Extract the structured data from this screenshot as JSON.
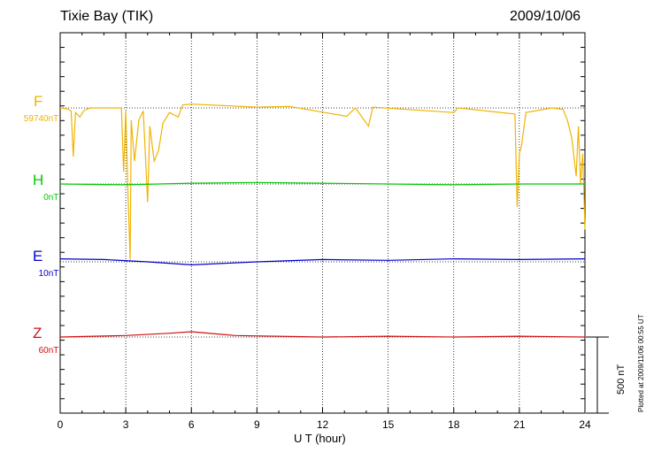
{
  "header": {
    "station": "Tixie Bay (TIK)",
    "date": "2009/10/06"
  },
  "footer": {
    "plotted_at": "Plotted at 2009/11/06 00:55 UT",
    "scale_label": "500 nT"
  },
  "colors": {
    "F": "#f0b400",
    "H": "#00c800",
    "E": "#0000c8",
    "Z": "#d01010",
    "grid": "#000000"
  },
  "chart_data": {
    "type": "line",
    "title": "Tixie Bay (TIK)",
    "date": "2009/10/06",
    "xlabel": "U T (hour)",
    "xlim": [
      0,
      24
    ],
    "xticks": [
      "0",
      "3",
      "6",
      "9",
      "12",
      "15",
      "18",
      "21",
      "24"
    ],
    "grid": "dotted vertical lines every 3 hours",
    "scale_bar": "500 nT",
    "series": [
      {
        "name": "F",
        "baseline_label": "59740nT",
        "baseline_nT": 59740,
        "points": [
          [
            0,
            0
          ],
          [
            0.3,
            -5
          ],
          [
            0.5,
            -20
          ],
          [
            0.6,
            -320
          ],
          [
            0.7,
            -30
          ],
          [
            0.9,
            -60
          ],
          [
            1.1,
            -15
          ],
          [
            1.4,
            0
          ],
          [
            2.8,
            0
          ],
          [
            2.9,
            -420
          ],
          [
            3.0,
            -20
          ],
          [
            3.1,
            -560
          ],
          [
            3.2,
            -1000
          ],
          [
            3.25,
            -80
          ],
          [
            3.4,
            -350
          ],
          [
            3.6,
            -80
          ],
          [
            3.8,
            -20
          ],
          [
            4.0,
            -620
          ],
          [
            4.1,
            -120
          ],
          [
            4.3,
            -350
          ],
          [
            4.5,
            -280
          ],
          [
            4.7,
            -100
          ],
          [
            5.0,
            -30
          ],
          [
            5.4,
            -60
          ],
          [
            5.6,
            20
          ],
          [
            6.0,
            25
          ],
          [
            9.0,
            5
          ],
          [
            10.5,
            10
          ],
          [
            13.1,
            -55
          ],
          [
            13.5,
            0
          ],
          [
            14.1,
            -120
          ],
          [
            14.3,
            5
          ],
          [
            18.0,
            -30
          ],
          [
            18.2,
            0
          ],
          [
            20.8,
            -40
          ],
          [
            20.9,
            -650
          ],
          [
            21.0,
            -300
          ],
          [
            21.1,
            -250
          ],
          [
            21.3,
            -30
          ],
          [
            22.5,
            0
          ],
          [
            23.0,
            -10
          ],
          [
            23.2,
            -80
          ],
          [
            23.4,
            -200
          ],
          [
            23.6,
            -450
          ],
          [
            23.7,
            -120
          ],
          [
            23.8,
            -500
          ],
          [
            23.9,
            -300
          ],
          [
            24.0,
            -800
          ]
        ]
      },
      {
        "name": "H",
        "baseline_label": "0nT",
        "baseline_nT": 0,
        "points": [
          [
            0,
            0
          ],
          [
            3,
            -5
          ],
          [
            6,
            5
          ],
          [
            9,
            10
          ],
          [
            12,
            5
          ],
          [
            15,
            0
          ],
          [
            18,
            -5
          ],
          [
            21,
            0
          ],
          [
            24,
            0
          ]
        ]
      },
      {
        "name": "E",
        "baseline_label": "10nT",
        "baseline_nT": 10,
        "points": [
          [
            0,
            20
          ],
          [
            2,
            15
          ],
          [
            4,
            0
          ],
          [
            6,
            -20
          ],
          [
            9,
            0
          ],
          [
            12,
            15
          ],
          [
            15,
            10
          ],
          [
            18,
            20
          ],
          [
            21,
            15
          ],
          [
            24,
            20
          ]
        ]
      },
      {
        "name": "Z",
        "baseline_label": "60nT",
        "baseline_nT": 60,
        "points": [
          [
            0,
            0
          ],
          [
            3,
            10
          ],
          [
            5,
            25
          ],
          [
            6,
            35
          ],
          [
            8,
            10
          ],
          [
            12,
            0
          ],
          [
            15,
            5
          ],
          [
            18,
            0
          ],
          [
            21,
            5
          ],
          [
            24,
            0
          ]
        ]
      }
    ]
  }
}
